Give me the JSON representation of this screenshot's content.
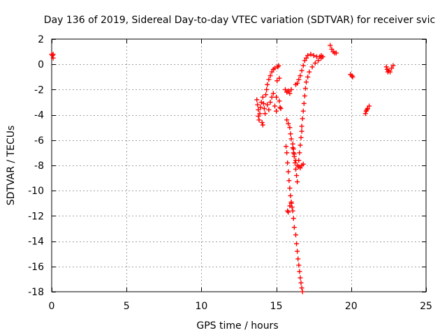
{
  "chart_data": {
    "type": "scatter",
    "title": "Day 136 of 2019, Sidereal Day-to-day VTEC variation (SDTVAR) for receiver svic",
    "xlabel": "GPS time / hours",
    "ylabel": "SDTVAR / TECUs",
    "xlim": [
      0,
      25
    ],
    "ylim": [
      -18,
      2
    ],
    "xticks": [
      0,
      5,
      10,
      15,
      20,
      25
    ],
    "yticks": [
      2,
      0,
      -2,
      -4,
      -6,
      -8,
      -10,
      -12,
      -14,
      -16,
      -18
    ],
    "grid": true,
    "marker": "+",
    "color": "#ff0000",
    "series": [
      {
        "name": "SDTVAR",
        "points": [
          [
            0.0,
            0.8
          ],
          [
            0.05,
            0.7
          ],
          [
            0.1,
            0.8
          ],
          [
            0.1,
            0.5
          ],
          [
            13.7,
            -2.8
          ],
          [
            13.75,
            -3.2
          ],
          [
            13.8,
            -3.6
          ],
          [
            13.8,
            -4.1
          ],
          [
            13.85,
            -4.4
          ],
          [
            13.9,
            -3.9
          ],
          [
            13.95,
            -3.4
          ],
          [
            14.0,
            -3.0
          ],
          [
            14.05,
            -4.6
          ],
          [
            14.1,
            -4.8
          ],
          [
            14.1,
            -2.6
          ],
          [
            14.15,
            -3.1
          ],
          [
            14.2,
            -3.5
          ],
          [
            14.25,
            -3.9
          ],
          [
            14.3,
            -2.4
          ],
          [
            14.35,
            -2.0
          ],
          [
            14.4,
            -3.2
          ],
          [
            14.4,
            -1.6
          ],
          [
            14.5,
            -3.6
          ],
          [
            14.5,
            -1.2
          ],
          [
            14.6,
            -3.0
          ],
          [
            14.6,
            -0.9
          ],
          [
            14.7,
            -2.6
          ],
          [
            14.7,
            -0.6
          ],
          [
            14.8,
            -2.3
          ],
          [
            14.8,
            -0.4
          ],
          [
            14.9,
            -3.3
          ],
          [
            14.9,
            -0.3
          ],
          [
            15.0,
            -3.7
          ],
          [
            15.0,
            -2.6
          ],
          [
            15.05,
            -1.3
          ],
          [
            15.1,
            -0.2
          ],
          [
            15.15,
            -0.1
          ],
          [
            15.2,
            -2.9
          ],
          [
            15.2,
            -1.1
          ],
          [
            15.25,
            -3.4
          ],
          [
            15.3,
            -3.5
          ],
          [
            15.6,
            -2.0
          ],
          [
            15.7,
            -2.2
          ],
          [
            15.8,
            -2.1
          ],
          [
            15.9,
            -2.3
          ],
          [
            16.0,
            -2.0
          ],
          [
            15.7,
            -4.4
          ],
          [
            15.8,
            -4.7
          ],
          [
            15.9,
            -5.0
          ],
          [
            15.95,
            -5.5
          ],
          [
            16.0,
            -5.9
          ],
          [
            16.1,
            -6.3
          ],
          [
            16.15,
            -6.7
          ],
          [
            16.2,
            -7.1
          ],
          [
            16.3,
            -7.6
          ],
          [
            16.4,
            -8.0
          ],
          [
            16.5,
            -8.1
          ],
          [
            16.6,
            -8.2
          ],
          [
            16.7,
            -8.0
          ],
          [
            16.8,
            -7.9
          ],
          [
            15.65,
            -6.5
          ],
          [
            15.7,
            -7.0
          ],
          [
            15.75,
            -7.8
          ],
          [
            15.8,
            -8.5
          ],
          [
            15.85,
            -9.2
          ],
          [
            15.9,
            -9.8
          ],
          [
            15.95,
            -10.4
          ],
          [
            16.0,
            -10.9
          ],
          [
            16.05,
            -11.3
          ],
          [
            15.75,
            -11.6
          ],
          [
            15.8,
            -11.7
          ],
          [
            15.9,
            -11.2
          ],
          [
            16.0,
            -11.0
          ],
          [
            16.1,
            -11.6
          ],
          [
            16.15,
            -12.2
          ],
          [
            16.2,
            -12.9
          ],
          [
            16.3,
            -13.5
          ],
          [
            16.35,
            -14.2
          ],
          [
            16.4,
            -14.8
          ],
          [
            16.45,
            -15.4
          ],
          [
            16.5,
            -15.9
          ],
          [
            16.55,
            -16.4
          ],
          [
            16.6,
            -16.9
          ],
          [
            16.65,
            -17.3
          ],
          [
            16.7,
            -17.7
          ],
          [
            16.75,
            -18.0
          ],
          [
            16.1,
            -6.6
          ],
          [
            16.15,
            -7.0
          ],
          [
            16.2,
            -7.3
          ],
          [
            16.25,
            -7.8
          ],
          [
            16.3,
            -8.3
          ],
          [
            16.35,
            -8.8
          ],
          [
            16.4,
            -9.3
          ],
          [
            16.3,
            -1.6
          ],
          [
            16.4,
            -1.5
          ],
          [
            16.5,
            -1.2
          ],
          [
            16.6,
            -0.9
          ],
          [
            16.7,
            -0.5
          ],
          [
            16.8,
            -0.1
          ],
          [
            16.9,
            0.3
          ],
          [
            17.0,
            0.5
          ],
          [
            17.1,
            0.7
          ],
          [
            17.3,
            0.8
          ],
          [
            17.5,
            0.7
          ],
          [
            17.7,
            0.6
          ],
          [
            17.9,
            0.6
          ],
          [
            18.0,
            0.7
          ],
          [
            16.7,
            -4.9
          ],
          [
            16.75,
            -4.3
          ],
          [
            16.8,
            -3.7
          ],
          [
            16.85,
            -3.1
          ],
          [
            16.9,
            -2.5
          ],
          [
            16.95,
            -1.9
          ],
          [
            17.0,
            -1.4
          ],
          [
            17.1,
            -1.0
          ],
          [
            17.2,
            -0.6
          ],
          [
            17.4,
            -0.2
          ],
          [
            17.6,
            0.1
          ],
          [
            17.8,
            0.3
          ],
          [
            18.0,
            0.5
          ],
          [
            18.1,
            0.6
          ],
          [
            16.5,
            -7.6
          ],
          [
            16.55,
            -7.0
          ],
          [
            16.6,
            -6.4
          ],
          [
            16.65,
            -5.8
          ],
          [
            16.7,
            -5.3
          ],
          [
            18.6,
            1.5
          ],
          [
            18.7,
            1.2
          ],
          [
            18.8,
            1.0
          ],
          [
            18.9,
            0.9
          ],
          [
            19.0,
            0.9
          ],
          [
            19.95,
            -0.8
          ],
          [
            20.05,
            -0.9
          ],
          [
            20.1,
            -1.0
          ],
          [
            20.95,
            -3.9
          ],
          [
            21.0,
            -3.7
          ],
          [
            21.05,
            -3.6
          ],
          [
            21.1,
            -3.5
          ],
          [
            21.2,
            -3.3
          ],
          [
            22.35,
            -0.2
          ],
          [
            22.4,
            -0.4
          ],
          [
            22.45,
            -0.6
          ],
          [
            22.5,
            -0.5
          ],
          [
            22.6,
            -0.6
          ],
          [
            22.7,
            -0.3
          ],
          [
            22.8,
            -0.1
          ]
        ]
      }
    ]
  }
}
